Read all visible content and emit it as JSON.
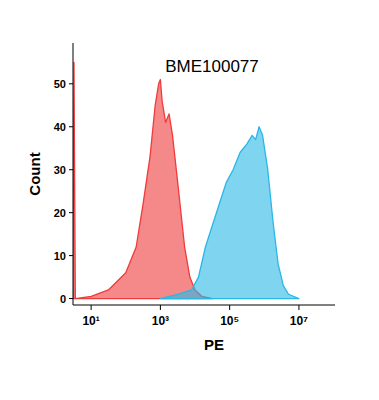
{
  "chart_data": {
    "type": "area",
    "title": "BME100077",
    "x_label": "PE",
    "y_label": "Count",
    "log": "x",
    "xlim": [
      3,
      110000000
    ],
    "ylim": [
      -1.5,
      59.5
    ],
    "xticks": [
      {
        "value": 10,
        "label": "10¹"
      },
      {
        "value": 1000,
        "label": "10³"
      },
      {
        "value": 100000,
        "label": "10⁵"
      },
      {
        "value": 10000000,
        "label": "10⁷"
      }
    ],
    "yticks": [
      0,
      10,
      20,
      30,
      40,
      50
    ],
    "series": [
      {
        "color": "#ef3b3b",
        "x": [
          3,
          3.2,
          3.5,
          10,
          31.6,
          100,
          200,
          316,
          501,
          708,
          891,
          1000,
          1122,
          1413,
          1778,
          2239,
          3162,
          5012,
          7079,
          10000,
          15849,
          31623
        ],
        "values": [
          0,
          55,
          0,
          0.5,
          2,
          6,
          12,
          22,
          33,
          45,
          50,
          51,
          46,
          41,
          43,
          38,
          27,
          12,
          5,
          2,
          0.5,
          0
        ]
      },
      {
        "color": "#2ab7e6",
        "x": [
          1000,
          3162,
          7943,
          12589,
          19953,
          31623,
          50119,
          79433,
          125893,
          199526,
          316228,
          446684,
          562341,
          707946,
          891251,
          1258925,
          1778279,
          2511886,
          3548134,
          5011872,
          10000000
        ],
        "values": [
          0,
          1,
          2,
          5,
          12,
          17,
          22,
          27,
          30,
          34,
          36,
          38,
          37,
          40,
          38,
          30,
          18,
          8,
          3,
          1,
          0
        ]
      }
    ]
  }
}
